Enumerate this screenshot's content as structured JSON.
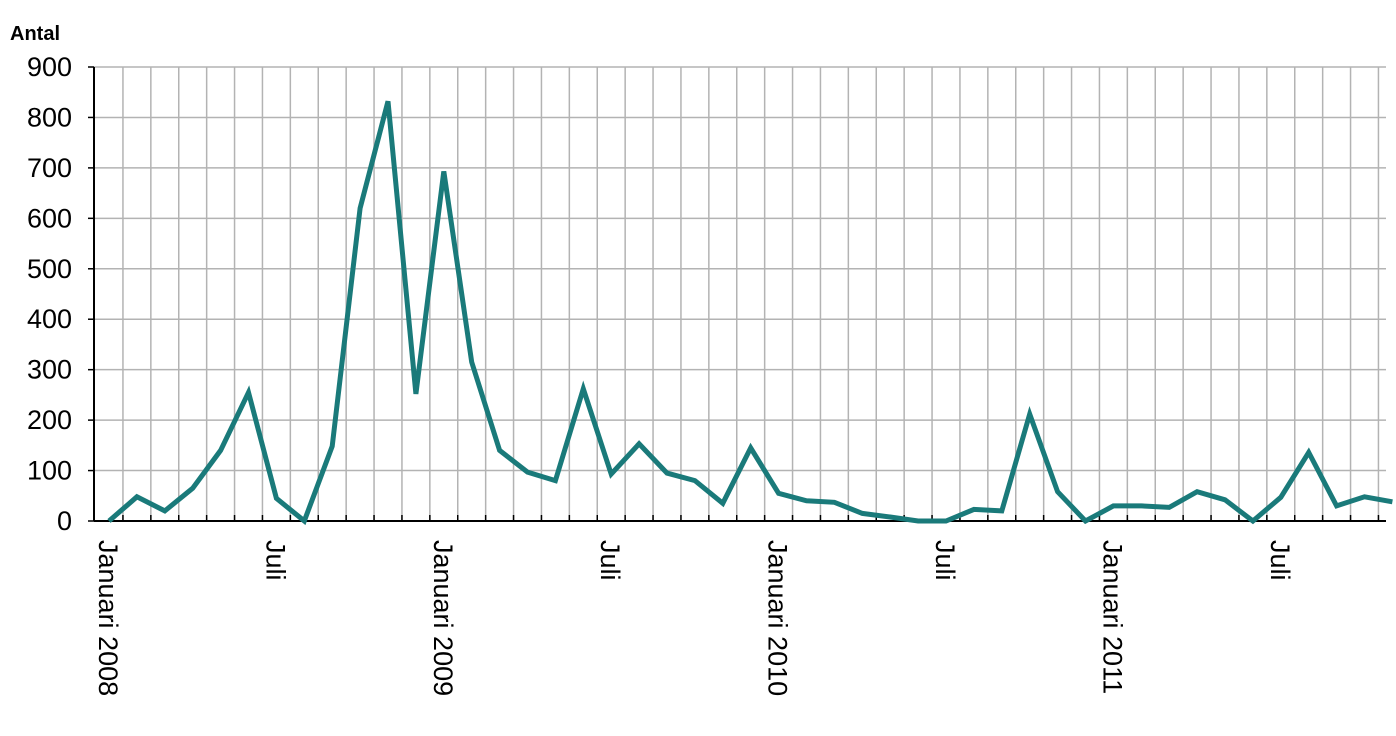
{
  "chart_data": {
    "type": "line",
    "title": "",
    "xlabel": "",
    "ylabel": "Antal",
    "ylim": [
      0,
      900
    ],
    "yticks": [
      "0",
      "100",
      "200",
      "300",
      "400",
      "500",
      "600",
      "700",
      "800",
      "900"
    ],
    "grid": true,
    "legend": "none",
    "x_labels": [
      {
        "month_index": 0,
        "label": "Januari 2008"
      },
      {
        "month_index": 6,
        "label": "Juli"
      },
      {
        "month_index": 12,
        "label": "Januari 2009"
      },
      {
        "month_index": 18,
        "label": "Juli"
      },
      {
        "month_index": 24,
        "label": "Januari 2010"
      },
      {
        "month_index": 30,
        "label": "Juli"
      },
      {
        "month_index": 36,
        "label": "Januari 2011"
      },
      {
        "month_index": 42,
        "label": "Juli"
      }
    ],
    "series": [
      {
        "color": "#1a7a7a",
        "values": [
          0,
          48,
          20,
          65,
          140,
          255,
          45,
          0,
          148,
          620,
          832,
          252,
          693,
          315,
          140,
          97,
          80,
          262,
          93,
          153,
          95,
          80,
          35,
          145,
          55,
          40,
          37,
          15,
          8,
          0,
          0,
          23,
          20,
          212,
          58,
          0,
          30,
          30,
          27,
          58,
          42,
          0,
          47,
          136,
          30,
          48,
          38
        ]
      }
    ]
  }
}
